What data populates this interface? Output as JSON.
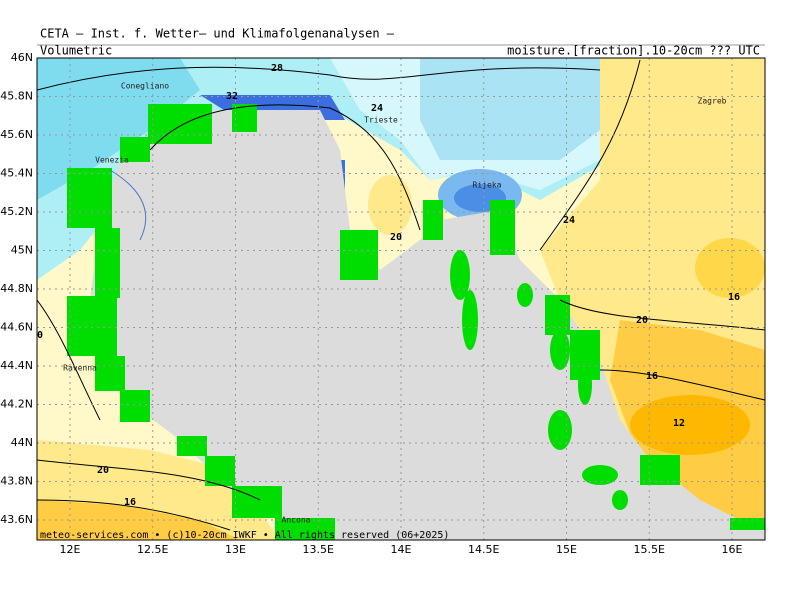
{
  "header": {
    "title": "CETA – Inst. f. Wetter– und Klimafolgenanalysen –",
    "left": "Volumetric",
    "right": "moisture.[fraction].10-20cm ??? UTC"
  },
  "axes": {
    "lat_labels": [
      "46N",
      "45.8N",
      "45.6N",
      "45.4N",
      "45.2N",
      "45N",
      "44.8N",
      "44.6N",
      "44.4N",
      "44.2N",
      "44N",
      "43.8N",
      "43.6N"
    ],
    "lon_labels": [
      "12E",
      "12.5E",
      "13E",
      "13.5E",
      "14E",
      "14.5E",
      "15E",
      "15.5E",
      "16E"
    ]
  },
  "places": [
    "Conegliano",
    "Venezia",
    "Trieste",
    "Rijeka",
    "Zagreb",
    "Ravenna",
    "Ancona"
  ],
  "contour_labels": [
    "28",
    "32",
    "24",
    "24",
    "20",
    "20",
    "16",
    "16",
    "12",
    "20",
    "16",
    "0"
  ],
  "footer": "meteo-services.com • (c)10-20cm IWKF • All rights reserved (06+2025)"
}
